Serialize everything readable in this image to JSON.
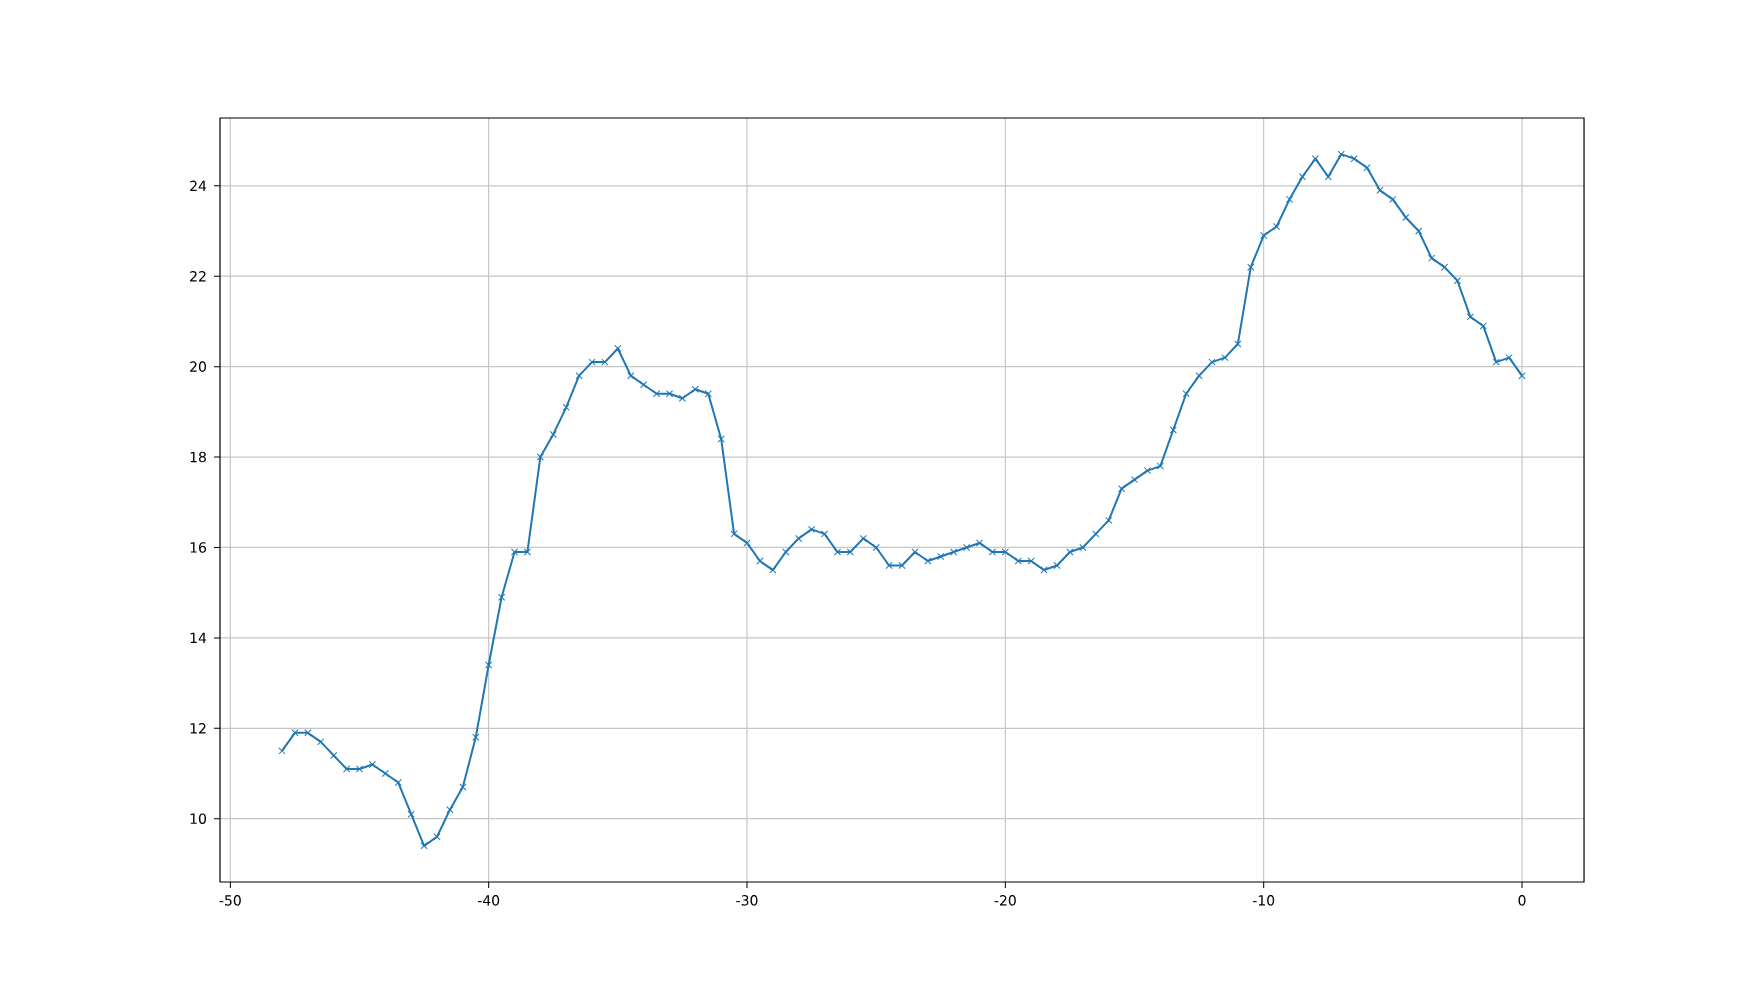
{
  "chart_data": {
    "type": "line",
    "color": "#1f77b4",
    "marker": "cross",
    "line_style": "solid",
    "grid": true,
    "x": [
      -48,
      -47.5,
      -47,
      -46.5,
      -46,
      -45.5,
      -45,
      -44.5,
      -44,
      -43.5,
      -43,
      -42.5,
      -42,
      -41.5,
      -41,
      -40.5,
      -40,
      -39.5,
      -39,
      -38.5,
      -38,
      -37.5,
      -37,
      -36.5,
      -36,
      -35.5,
      -35,
      -34.5,
      -34,
      -33.5,
      -33,
      -32.5,
      -32,
      -31.5,
      -31,
      -30.5,
      -30,
      -29.5,
      -29,
      -28.5,
      -28,
      -27.5,
      -27,
      -26.5,
      -26,
      -25.5,
      -25,
      -24.5,
      -24,
      -23.5,
      -23,
      -22.5,
      -22,
      -21.5,
      -21,
      -20.5,
      -20,
      -19.5,
      -19,
      -18.5,
      -18,
      -17.5,
      -17,
      -16.5,
      -16,
      -15.5,
      -15,
      -14.5,
      -14,
      -13.5,
      -13,
      -12.5,
      -12,
      -11.5,
      -11,
      -10.5,
      -10,
      -9.5,
      -9,
      -8.5,
      -8,
      -7.5,
      -7,
      -6.5,
      -6,
      -5.5,
      -5,
      -4.5,
      -4,
      -3.5,
      -3,
      -2.5,
      -2,
      -1.5,
      -1,
      -0.5,
      0
    ],
    "values": [
      11.5,
      11.9,
      11.9,
      11.7,
      11.4,
      11.1,
      11.1,
      11.2,
      11.0,
      10.8,
      10.1,
      9.4,
      9.6,
      10.2,
      10.7,
      11.8,
      13.4,
      14.9,
      15.9,
      15.9,
      18.0,
      18.5,
      19.1,
      19.8,
      20.1,
      20.1,
      20.4,
      19.8,
      19.6,
      19.4,
      19.4,
      19.3,
      19.5,
      19.4,
      18.4,
      16.3,
      16.1,
      15.7,
      15.5,
      15.9,
      16.2,
      16.4,
      16.3,
      15.9,
      15.9,
      16.2,
      16.0,
      15.6,
      15.6,
      15.9,
      15.7,
      15.8,
      15.9,
      16.0,
      16.1,
      15.9,
      15.9,
      15.7,
      15.7,
      15.5,
      15.6,
      15.9,
      16.0,
      16.3,
      16.6,
      17.3,
      17.5,
      17.7,
      17.8,
      18.6,
      19.4,
      19.8,
      20.1,
      20.2,
      20.5,
      22.2,
      22.9,
      23.1,
      23.7,
      24.2,
      24.6,
      24.2,
      24.7,
      24.6,
      24.4,
      23.9,
      23.7,
      23.3,
      23.0,
      22.4,
      22.2,
      21.9,
      21.1,
      20.9,
      20.1,
      20.2,
      19.8
    ],
    "xlim": [
      -50.4,
      2.4
    ],
    "ylim": [
      8.6,
      25.5
    ],
    "xticks": [
      -50,
      -40,
      -30,
      -20,
      -10,
      0
    ],
    "yticks": [
      10,
      12,
      14,
      16,
      18,
      20,
      22,
      24
    ]
  }
}
